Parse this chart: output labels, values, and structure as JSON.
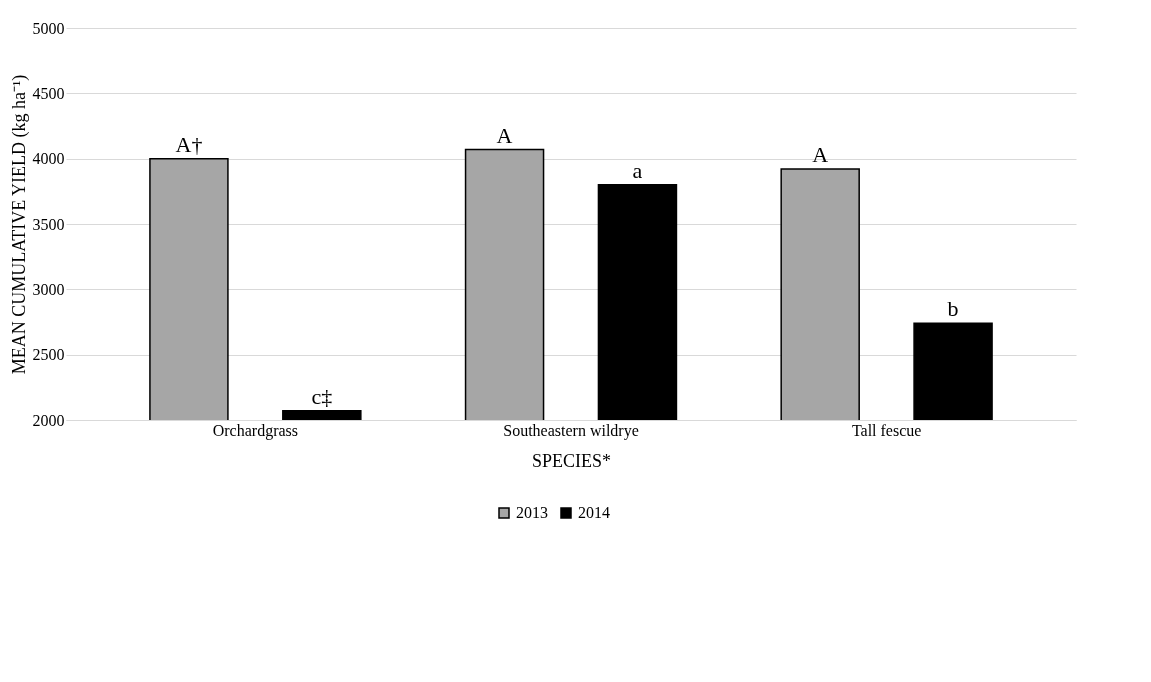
{
  "chart_data": {
    "type": "bar",
    "xlabel": "SPECIES*",
    "ylabel": "MEAN CUMULATIVE YIELD (kg ha⁻¹)",
    "categories": [
      "Orchardgrass",
      "Southeastern wildrye",
      "Tall fescue"
    ],
    "series": [
      {
        "name": "2013",
        "color": "#a6a6a6",
        "values": [
          4000,
          4070,
          3920
        ],
        "value_labels": [
          "A†",
          "A",
          "A"
        ]
      },
      {
        "name": "2014",
        "color": "#000000",
        "values": [
          2070,
          3800,
          2740
        ],
        "value_labels": [
          "c‡",
          "a",
          "b"
        ]
      }
    ],
    "ylim": [
      2000,
      5000
    ],
    "yticks": [
      2000,
      2500,
      3000,
      3500,
      4000,
      4500,
      5000
    ],
    "grid": "y",
    "legend": "bottom"
  }
}
